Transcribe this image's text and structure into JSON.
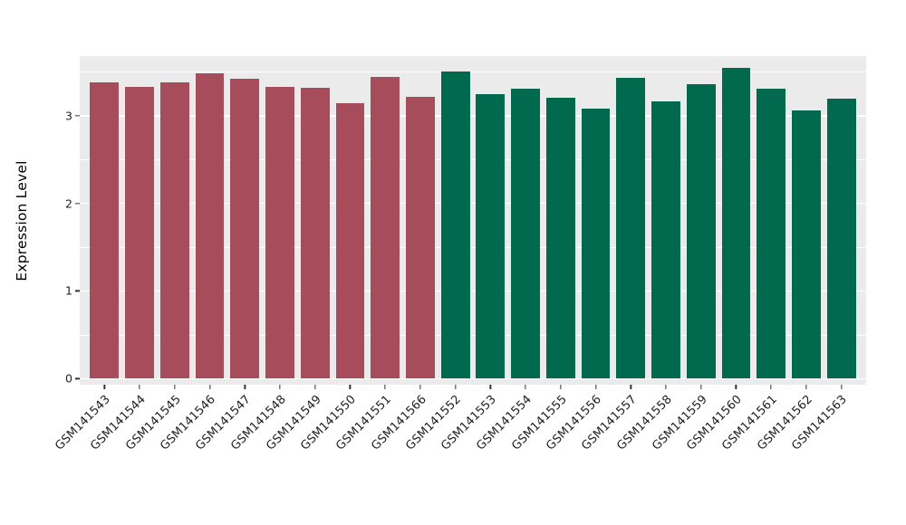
{
  "chart_data": {
    "type": "bar",
    "title": "",
    "xlabel": "",
    "ylabel": "Expression Level",
    "plot_background": "#EBEBEB",
    "text_color": "#1f1f1f",
    "grid": {
      "major": [
        0,
        1,
        2,
        3
      ],
      "minor": [
        0.5,
        1.5,
        2.5,
        3.5
      ],
      "color": "#FFFFFF"
    },
    "axis": {
      "vmin": -0.07,
      "vmax": 3.68,
      "yticks": [
        0,
        1,
        2,
        3
      ]
    },
    "categories": [
      "GSM141543",
      "GSM141544",
      "GSM141545",
      "GSM141546",
      "GSM141547",
      "GSM141548",
      "GSM141549",
      "GSM141550",
      "GSM141551",
      "GSM141566",
      "GSM141552",
      "GSM141553",
      "GSM141554",
      "GSM141555",
      "GSM141556",
      "GSM141557",
      "GSM141558",
      "GSM141559",
      "GSM141560",
      "GSM141561",
      "GSM141562",
      "GSM141563"
    ],
    "values": [
      3.38,
      3.33,
      3.38,
      3.48,
      3.42,
      3.33,
      3.32,
      3.14,
      3.44,
      3.21,
      3.5,
      3.25,
      3.31,
      3.2,
      3.08,
      3.43,
      3.16,
      3.36,
      3.55,
      3.31,
      3.06,
      3.19
    ],
    "bar_groups": [
      "group1",
      "group1",
      "group1",
      "group1",
      "group1",
      "group1",
      "group1",
      "group1",
      "group1",
      "group1",
      "group2",
      "group2",
      "group2",
      "group2",
      "group2",
      "group2",
      "group2",
      "group2",
      "group2",
      "group2",
      "group2",
      "group2"
    ],
    "group_colors": {
      "group1": "#A74C5B",
      "group2": "#00694E"
    }
  }
}
